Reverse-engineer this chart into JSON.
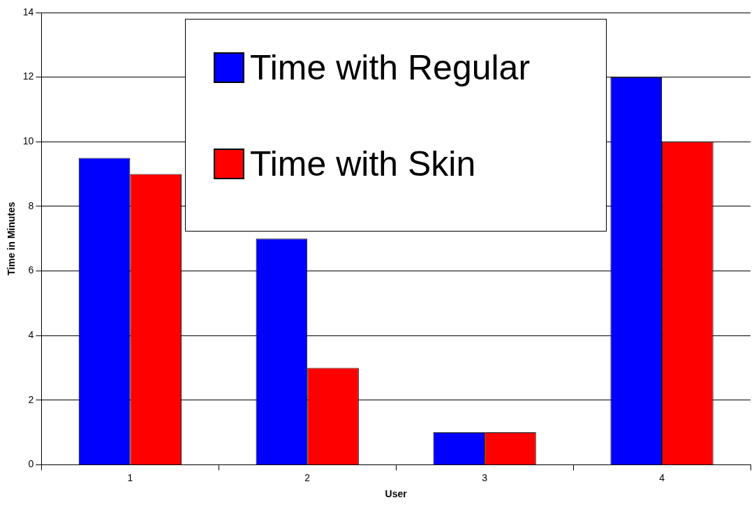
{
  "chart_data": {
    "type": "bar",
    "xlabel": "User",
    "ylabel": "Time in Minutes",
    "categories": [
      "1",
      "2",
      "3",
      "4"
    ],
    "series": [
      {
        "name": "Time with Regular",
        "color": "#0000ff",
        "values": [
          9.5,
          7,
          1,
          12
        ]
      },
      {
        "name": "Time with Skin",
        "color": "#ff0000",
        "values": [
          9,
          3,
          1,
          10
        ]
      }
    ],
    "ylim": [
      0,
      14
    ],
    "yticks": [
      0,
      2,
      4,
      6,
      8,
      10,
      12,
      14
    ],
    "grid": "y",
    "legend": "top"
  }
}
